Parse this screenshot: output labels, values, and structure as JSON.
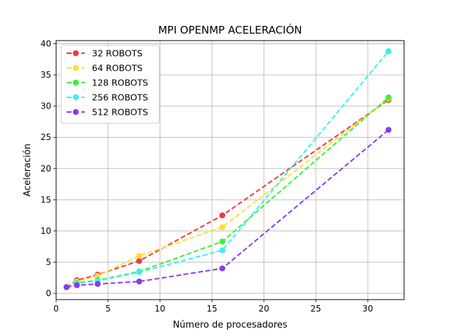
{
  "chart_data": {
    "type": "line",
    "title": "MPI OPENMP ACELERACIÓN",
    "xlabel": "Número de procesadores",
    "ylabel": "Aceleración",
    "xlim": [
      0,
      33.5
    ],
    "ylim": [
      -1,
      40.5
    ],
    "xticks": [
      0,
      5,
      10,
      15,
      20,
      25,
      30
    ],
    "yticks": [
      0,
      5,
      10,
      15,
      20,
      25,
      30,
      35,
      40
    ],
    "grid": true,
    "legend_position": "top-left",
    "line_style": "dashed",
    "x": [
      1,
      2,
      4,
      8,
      16,
      32
    ],
    "series": [
      {
        "name": "32 ROBOTS",
        "color": "#f03a3a",
        "values": [
          1.0,
          2.1,
          3.0,
          5.2,
          12.5,
          31.0
        ]
      },
      {
        "name": "64 ROBOTS",
        "color": "#ffe02e",
        "values": [
          1.0,
          1.9,
          2.8,
          6.0,
          10.6,
          31.2
        ]
      },
      {
        "name": "128 ROBOTS",
        "color": "#3af03a",
        "values": [
          1.0,
          1.7,
          2.1,
          3.5,
          8.3,
          31.4
        ]
      },
      {
        "name": "256 ROBOTS",
        "color": "#3af0f0",
        "values": [
          1.0,
          1.6,
          2.0,
          3.4,
          6.9,
          38.8
        ]
      },
      {
        "name": "512 ROBOTS",
        "color": "#8a3af0",
        "values": [
          1.0,
          1.3,
          1.5,
          1.9,
          4.0,
          26.2
        ]
      }
    ]
  }
}
